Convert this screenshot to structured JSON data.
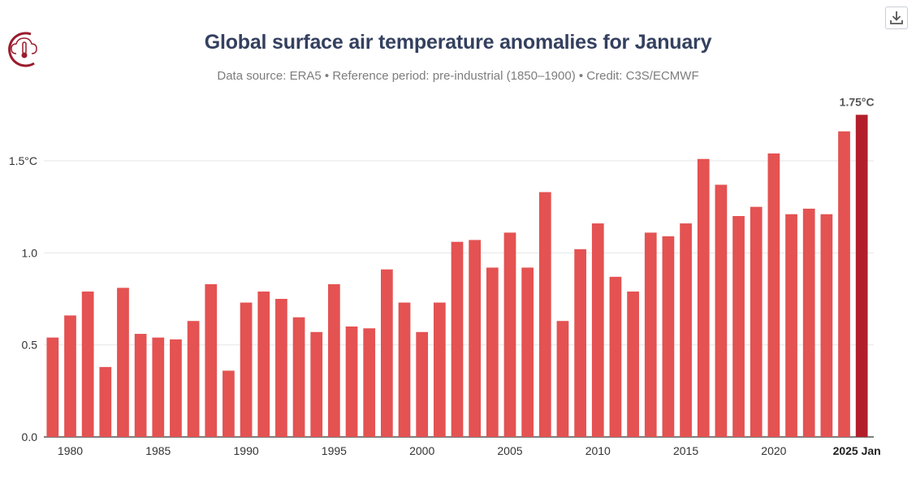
{
  "header": {
    "title": "Global surface air temperature anomalies for January",
    "subtitle": "Data source: ERA5 • Reference period: pre-industrial (1850–1900) • Credit: C3S/ECMWF"
  },
  "icons": {
    "logo": "c3s-thermometer-cloud-logo-icon",
    "download": "download-icon"
  },
  "colors": {
    "bar": "#e45252",
    "highlight": "#b21f2b",
    "grid": "#e6e6e6",
    "axis": "#333333"
  },
  "chart_data": {
    "type": "bar",
    "title": "Global surface air temperature anomalies for January",
    "xlabel": "",
    "ylabel": "",
    "ylim": [
      0,
      1.8
    ],
    "y_ticks": [
      {
        "value": 0,
        "label": "0.0"
      },
      {
        "value": 0.5,
        "label": "0.5"
      },
      {
        "value": 1.0,
        "label": "1.0"
      },
      {
        "value": 1.5,
        "label": "1.5°C"
      }
    ],
    "x_ticks": [
      {
        "year": 1980,
        "label": "1980"
      },
      {
        "year": 1985,
        "label": "1985"
      },
      {
        "year": 1990,
        "label": "1990"
      },
      {
        "year": 1995,
        "label": "1995"
      },
      {
        "year": 2000,
        "label": "2000"
      },
      {
        "year": 2005,
        "label": "2005"
      },
      {
        "year": 2010,
        "label": "2010"
      },
      {
        "year": 2015,
        "label": "2015"
      },
      {
        "year": 2020,
        "label": "2020"
      },
      {
        "year": 2025,
        "label": "2025 Jan",
        "bold": true
      }
    ],
    "categories": [
      1979,
      1980,
      1981,
      1982,
      1983,
      1984,
      1985,
      1986,
      1987,
      1988,
      1989,
      1990,
      1991,
      1992,
      1993,
      1994,
      1995,
      1996,
      1997,
      1998,
      1999,
      2000,
      2001,
      2002,
      2003,
      2004,
      2005,
      2006,
      2007,
      2008,
      2009,
      2010,
      2011,
      2012,
      2013,
      2014,
      2015,
      2016,
      2017,
      2018,
      2019,
      2020,
      2021,
      2022,
      2023,
      2024,
      2025
    ],
    "values": [
      0.54,
      0.66,
      0.79,
      0.38,
      0.81,
      0.56,
      0.54,
      0.53,
      0.63,
      0.83,
      0.36,
      0.73,
      0.79,
      0.75,
      0.65,
      0.57,
      0.83,
      0.6,
      0.59,
      0.91,
      0.73,
      0.57,
      0.73,
      1.06,
      1.07,
      0.92,
      1.11,
      0.92,
      1.33,
      0.63,
      1.02,
      1.16,
      0.87,
      0.79,
      1.11,
      1.09,
      1.16,
      1.51,
      1.37,
      1.2,
      1.25,
      1.54,
      1.21,
      1.24,
      1.21,
      1.66,
      1.75
    ],
    "highlight_index": 46,
    "highlight_label": "1.75°C"
  }
}
